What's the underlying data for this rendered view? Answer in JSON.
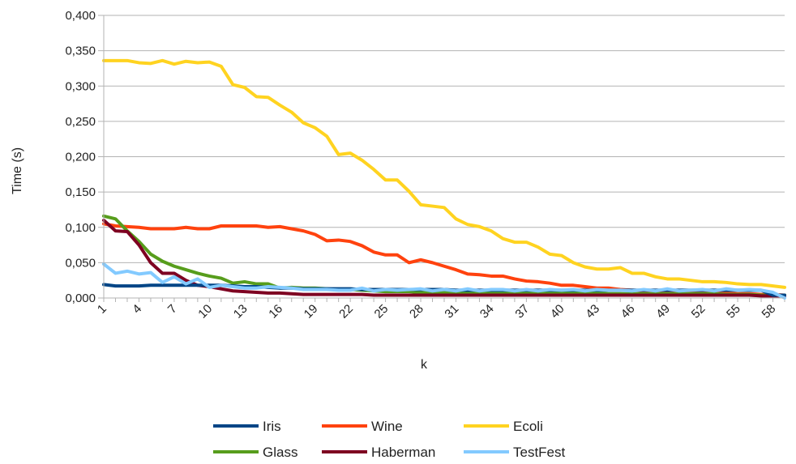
{
  "chart_data": {
    "type": "line",
    "xlabel": "k",
    "ylabel": "Time (s)",
    "ylim": [
      0,
      0.4
    ],
    "yticks": [
      "0,000",
      "0,050",
      "0,100",
      "0,150",
      "0,200",
      "0,250",
      "0,300",
      "0,350",
      "0,400"
    ],
    "xticks": [
      "1",
      "4",
      "7",
      "10",
      "13",
      "16",
      "19",
      "22",
      "25",
      "28",
      "31",
      "34",
      "37",
      "40",
      "43",
      "46",
      "49",
      "52",
      "55",
      "58"
    ],
    "x": [
      1,
      2,
      3,
      4,
      5,
      6,
      7,
      8,
      9,
      10,
      11,
      12,
      13,
      14,
      15,
      16,
      17,
      18,
      19,
      20,
      21,
      22,
      23,
      24,
      25,
      26,
      27,
      28,
      29,
      30,
      31,
      32,
      33,
      34,
      35,
      36,
      37,
      38,
      39,
      40,
      41,
      42,
      43,
      44,
      45,
      46,
      47,
      48,
      49,
      50,
      51,
      52,
      53,
      54,
      55,
      56,
      57,
      58,
      59
    ],
    "grid": true,
    "legend_position": "bottom",
    "series": [
      {
        "name": "Iris",
        "color": "#004586",
        "values": [
          0.019,
          0.017,
          0.017,
          0.017,
          0.018,
          0.018,
          0.018,
          0.018,
          0.018,
          0.018,
          0.018,
          0.017,
          0.016,
          0.016,
          0.015,
          0.014,
          0.014,
          0.013,
          0.013,
          0.013,
          0.013,
          0.013,
          0.012,
          0.012,
          0.012,
          0.012,
          0.012,
          0.012,
          0.012,
          0.012,
          0.011,
          0.011,
          0.011,
          0.011,
          0.011,
          0.011,
          0.011,
          0.011,
          0.011,
          0.011,
          0.011,
          0.011,
          0.011,
          0.011,
          0.011,
          0.011,
          0.011,
          0.011,
          0.011,
          0.011,
          0.011,
          0.011,
          0.011,
          0.011,
          0.011,
          0.011,
          0.011,
          0.004,
          0.004
        ]
      },
      {
        "name": "Wine",
        "color": "#ff420e",
        "values": [
          0.105,
          0.102,
          0.101,
          0.1,
          0.098,
          0.098,
          0.098,
          0.1,
          0.098,
          0.098,
          0.102,
          0.102,
          0.102,
          0.102,
          0.1,
          0.101,
          0.098,
          0.095,
          0.09,
          0.081,
          0.082,
          0.08,
          0.074,
          0.065,
          0.061,
          0.061,
          0.05,
          0.054,
          0.05,
          0.045,
          0.04,
          0.034,
          0.033,
          0.031,
          0.031,
          0.027,
          0.024,
          0.023,
          0.021,
          0.018,
          0.018,
          0.016,
          0.014,
          0.014,
          0.012,
          0.011,
          0.01,
          0.01,
          0.009,
          0.009,
          0.008,
          0.008,
          0.007,
          0.007,
          0.006,
          0.006,
          0.005,
          0.005,
          0.004
        ]
      },
      {
        "name": "Ecoli",
        "color": "#ffd320",
        "values": [
          0.336,
          0.336,
          0.336,
          0.333,
          0.332,
          0.336,
          0.331,
          0.335,
          0.333,
          0.334,
          0.328,
          0.302,
          0.298,
          0.285,
          0.284,
          0.273,
          0.263,
          0.248,
          0.241,
          0.229,
          0.203,
          0.205,
          0.195,
          0.182,
          0.167,
          0.167,
          0.151,
          0.132,
          0.13,
          0.128,
          0.112,
          0.104,
          0.101,
          0.095,
          0.084,
          0.079,
          0.079,
          0.072,
          0.062,
          0.06,
          0.05,
          0.044,
          0.041,
          0.041,
          0.043,
          0.035,
          0.035,
          0.03,
          0.027,
          0.027,
          0.025,
          0.023,
          0.023,
          0.022,
          0.02,
          0.019,
          0.019,
          0.017,
          0.015
        ]
      },
      {
        "name": "Glass",
        "color": "#579d1c",
        "values": [
          0.116,
          0.112,
          0.095,
          0.08,
          0.062,
          0.052,
          0.045,
          0.04,
          0.035,
          0.031,
          0.028,
          0.021,
          0.023,
          0.02,
          0.02,
          0.014,
          0.015,
          0.014,
          0.014,
          0.013,
          0.012,
          0.012,
          0.011,
          0.01,
          0.009,
          0.009,
          0.009,
          0.008,
          0.008,
          0.008,
          0.008,
          0.008,
          0.008,
          0.007,
          0.007,
          0.007,
          0.007,
          0.007,
          0.007,
          0.007,
          0.007,
          0.007,
          0.007,
          0.006,
          0.006,
          0.006,
          0.006,
          0.006,
          0.006,
          0.006,
          0.006,
          0.006,
          0.006,
          0.005,
          0.005,
          0.005,
          0.004,
          0.004,
          0.004
        ]
      },
      {
        "name": "Haberman",
        "color": "#7e0021",
        "values": [
          0.11,
          0.095,
          0.094,
          0.075,
          0.05,
          0.035,
          0.035,
          0.025,
          0.018,
          0.016,
          0.013,
          0.01,
          0.009,
          0.008,
          0.007,
          0.007,
          0.006,
          0.005,
          0.005,
          0.005,
          0.005,
          0.005,
          0.005,
          0.004,
          0.004,
          0.004,
          0.004,
          0.004,
          0.004,
          0.004,
          0.004,
          0.004,
          0.004,
          0.004,
          0.004,
          0.004,
          0.004,
          0.004,
          0.004,
          0.004,
          0.004,
          0.004,
          0.004,
          0.004,
          0.004,
          0.004,
          0.004,
          0.004,
          0.004,
          0.004,
          0.004,
          0.004,
          0.004,
          0.004,
          0.004,
          0.004,
          0.003,
          0.003,
          0.003
        ]
      },
      {
        "name": "TestFest",
        "color": "#83caff",
        "values": [
          0.048,
          0.035,
          0.038,
          0.034,
          0.036,
          0.022,
          0.03,
          0.02,
          0.027,
          0.015,
          0.018,
          0.016,
          0.014,
          0.014,
          0.016,
          0.015,
          0.014,
          0.012,
          0.012,
          0.012,
          0.011,
          0.011,
          0.014,
          0.01,
          0.012,
          0.011,
          0.012,
          0.013,
          0.01,
          0.012,
          0.01,
          0.013,
          0.01,
          0.012,
          0.012,
          0.01,
          0.012,
          0.01,
          0.012,
          0.011,
          0.012,
          0.01,
          0.012,
          0.011,
          0.011,
          0.01,
          0.012,
          0.01,
          0.013,
          0.01,
          0.011,
          0.012,
          0.01,
          0.013,
          0.011,
          0.012,
          0.011,
          0.008,
          0.0
        ]
      }
    ]
  }
}
